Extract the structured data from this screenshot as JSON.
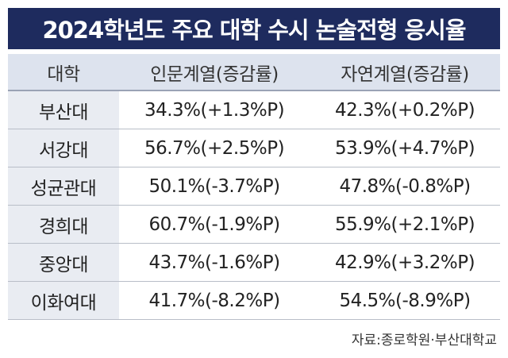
{
  "title": "2024학년도 주요 대학 수시 논술전형 응시율",
  "table": {
    "header": [
      "대학",
      "인문계열(증감률)",
      "자연계열(증감률)"
    ],
    "rows": [
      [
        "부산대",
        "34.3%(+1.3%P)",
        "42.3%(+0.2%P)"
      ],
      [
        "서강대",
        "56.7%(+2.5%P)",
        "53.9%(+4.7%P)"
      ],
      [
        "성균관대",
        "50.1%(-3.7%P)",
        "47.8%(-0.8%P)"
      ],
      [
        "경희대",
        "60.7%(-1.9%P)",
        "55.9%(+2.1%P)"
      ],
      [
        "중앙대",
        "43.7%(-1.6%P)",
        "42.9%(+3.2%P)"
      ],
      [
        "이화여대",
        "41.7%(-8.2%P)",
        "54.5%(-8.9%P)"
      ]
    ]
  },
  "source": "자료:종로학원·부산대학교"
}
